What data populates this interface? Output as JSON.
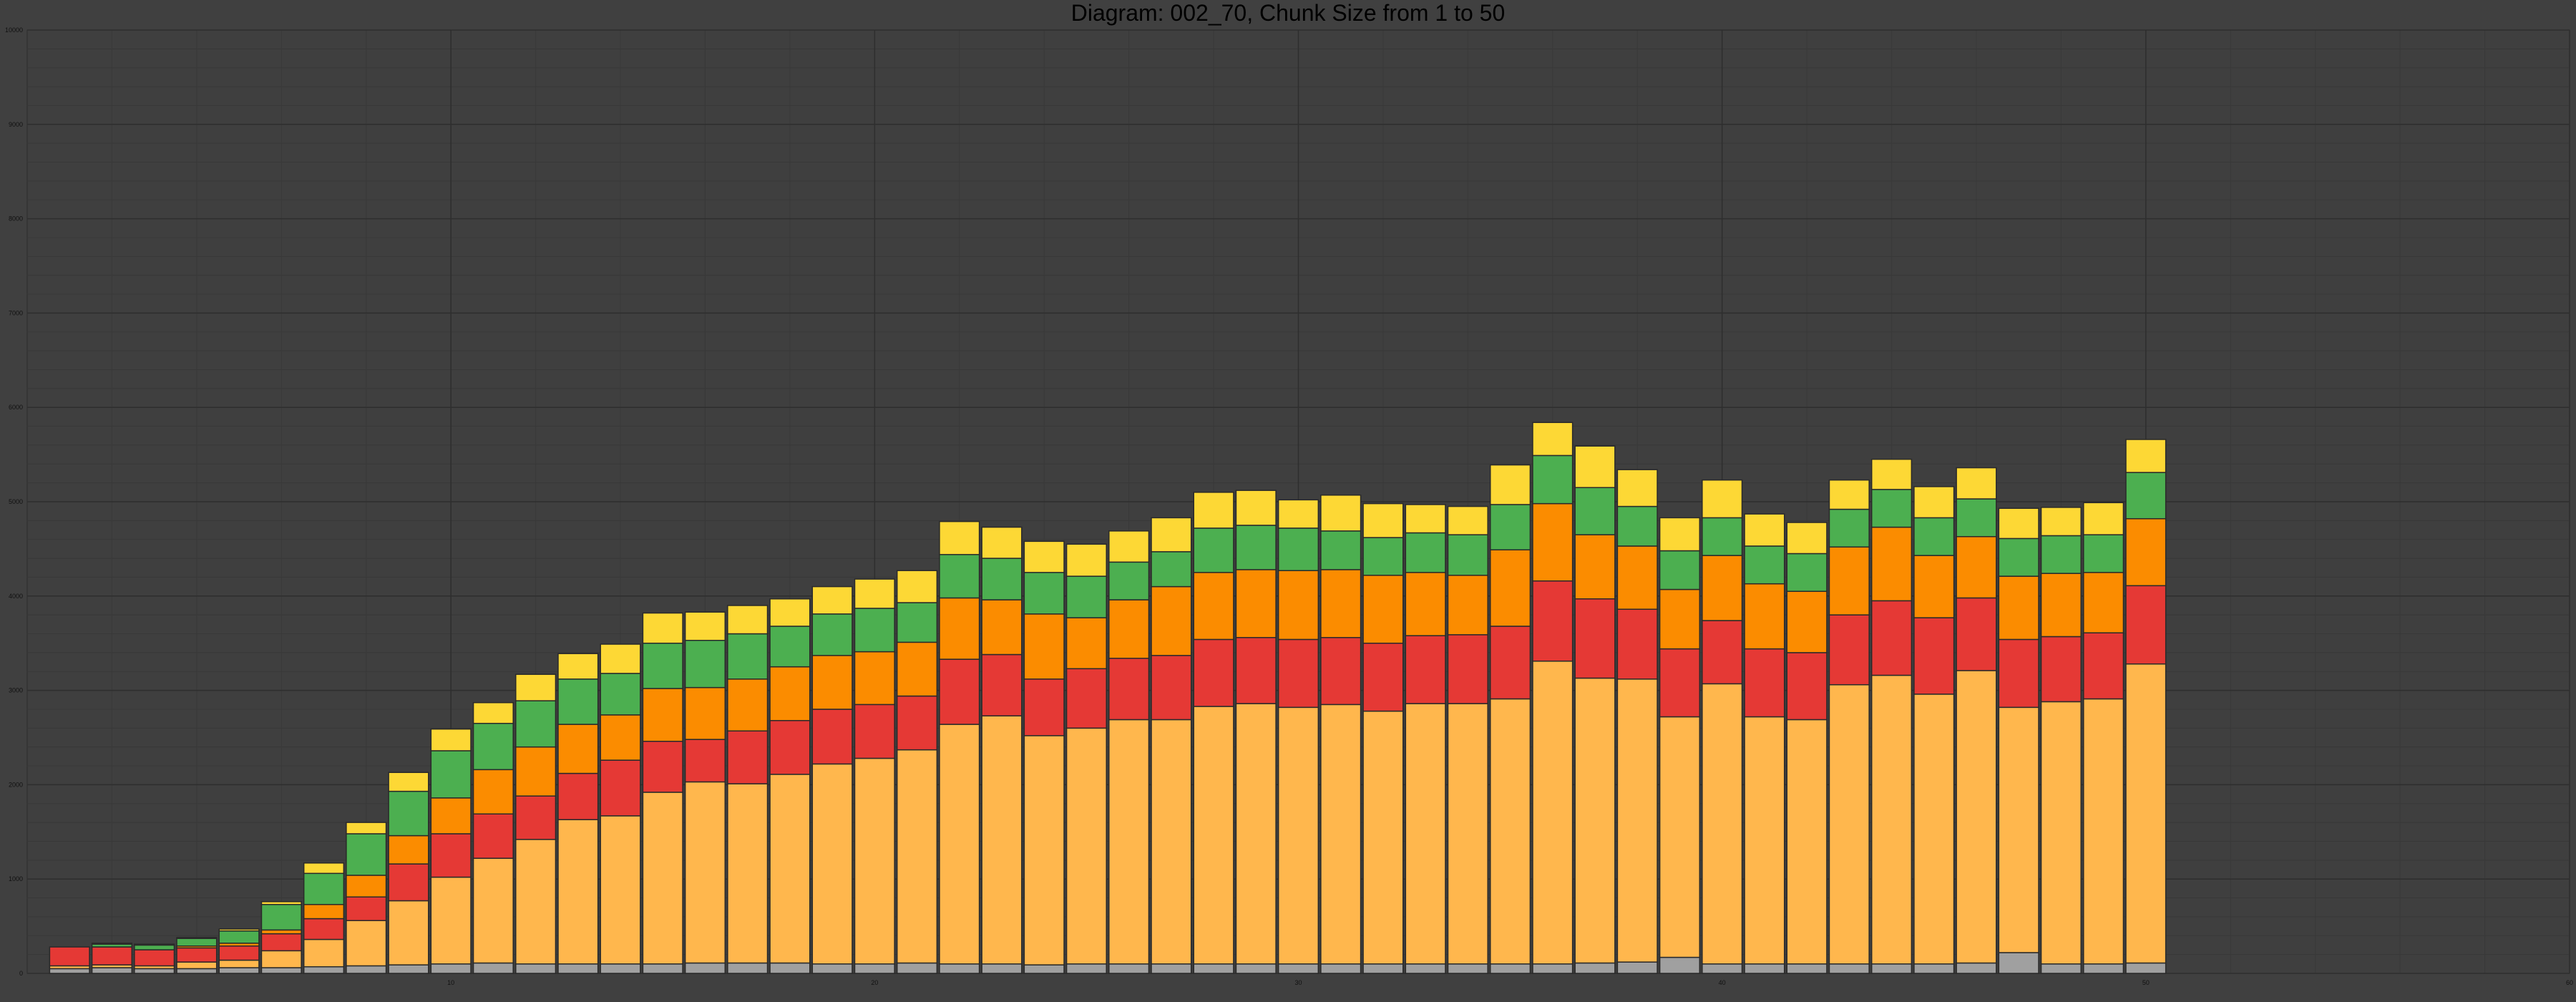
{
  "chart_data": {
    "type": "bar",
    "stacked": true,
    "title": "Diagram: 002_70, Chunk Size from 1 to 50",
    "xlabel": "",
    "ylabel": "",
    "xlim": [
      0,
      60
    ],
    "ylim": [
      0,
      10000
    ],
    "x_ticks": [
      10,
      20,
      30,
      40,
      50,
      60
    ],
    "y_ticks": [
      0,
      1000,
      2000,
      3000,
      4000,
      5000,
      6000,
      7000,
      8000,
      9000,
      10000
    ],
    "grid": true,
    "legend": "none",
    "categories": [
      1,
      2,
      3,
      4,
      5,
      6,
      7,
      8,
      9,
      10,
      11,
      12,
      13,
      14,
      15,
      16,
      17,
      18,
      19,
      20,
      21,
      22,
      23,
      24,
      25,
      26,
      27,
      28,
      29,
      30,
      31,
      32,
      33,
      34,
      35,
      36,
      37,
      38,
      39,
      40,
      41,
      42,
      43,
      44,
      45,
      46,
      47,
      48,
      49,
      50
    ],
    "series": [
      {
        "color": "#a0a0a0",
        "values": [
          50,
          60,
          50,
          50,
          60,
          60,
          70,
          80,
          90,
          100,
          110,
          100,
          100,
          100,
          100,
          110,
          110,
          110,
          100,
          100,
          110,
          100,
          100,
          90,
          100,
          100,
          100,
          100,
          100,
          100,
          100,
          100,
          100,
          100,
          100,
          100,
          110,
          120,
          170,
          100,
          100,
          100,
          100,
          100,
          100,
          110,
          220,
          100,
          100,
          110
        ]
      },
      {
        "color": "#ffb74d",
        "values": [
          30,
          30,
          30,
          70,
          80,
          180,
          290,
          480,
          680,
          920,
          1110,
          1320,
          1530,
          1570,
          1820,
          1920,
          1900,
          2000,
          2120,
          2180,
          2260,
          2540,
          2630,
          2430,
          2500,
          2590,
          2590,
          2730,
          2760,
          2720,
          2750,
          2680,
          2760,
          2760,
          2810,
          3210,
          3020,
          3000,
          2550,
          2970,
          2620,
          2590,
          2960,
          3060,
          2860,
          3100,
          2600,
          2780,
          2810,
          3170
        ]
      },
      {
        "color": "#e53935",
        "values": [
          200,
          190,
          170,
          150,
          150,
          180,
          220,
          250,
          390,
          460,
          470,
          460,
          490,
          590,
          540,
          450,
          560,
          570,
          580,
          570,
          570,
          690,
          650,
          600,
          630,
          650,
          680,
          710,
          700,
          720,
          710,
          720,
          720,
          730,
          770,
          850,
          840,
          740,
          720,
          670,
          720,
          710,
          740,
          790,
          810,
          770,
          720,
          690,
          700,
          830
        ]
      },
      {
        "color": "#fb8c00",
        "values": [
          0,
          0,
          0,
          20,
          30,
          40,
          150,
          230,
          300,
          380,
          470,
          520,
          520,
          480,
          560,
          550,
          550,
          570,
          570,
          560,
          570,
          650,
          580,
          690,
          540,
          620,
          730,
          710,
          720,
          730,
          720,
          720,
          670,
          630,
          810,
          820,
          680,
          670,
          630,
          690,
          690,
          650,
          720,
          780,
          660,
          650,
          670,
          670,
          640,
          710
        ]
      },
      {
        "color": "#4caf50",
        "values": [
          0,
          30,
          50,
          80,
          130,
          270,
          330,
          440,
          470,
          500,
          490,
          490,
          480,
          440,
          480,
          500,
          480,
          430,
          440,
          460,
          420,
          460,
          440,
          440,
          440,
          400,
          370,
          470,
          470,
          450,
          410,
          400,
          420,
          430,
          480,
          510,
          500,
          420,
          410,
          400,
          400,
          400,
          400,
          400,
          400,
          400,
          400,
          400,
          400,
          490
        ]
      },
      {
        "color": "#fdd835",
        "values": [
          0,
          10,
          10,
          10,
          20,
          30,
          110,
          120,
          200,
          230,
          220,
          280,
          270,
          310,
          320,
          300,
          300,
          290,
          290,
          310,
          340,
          350,
          330,
          330,
          340,
          330,
          360,
          380,
          370,
          300,
          380,
          360,
          300,
          300,
          420,
          350,
          440,
          390,
          350,
          400,
          340,
          330,
          310,
          320,
          330,
          330,
          320,
          300,
          340,
          350
        ]
      }
    ]
  }
}
